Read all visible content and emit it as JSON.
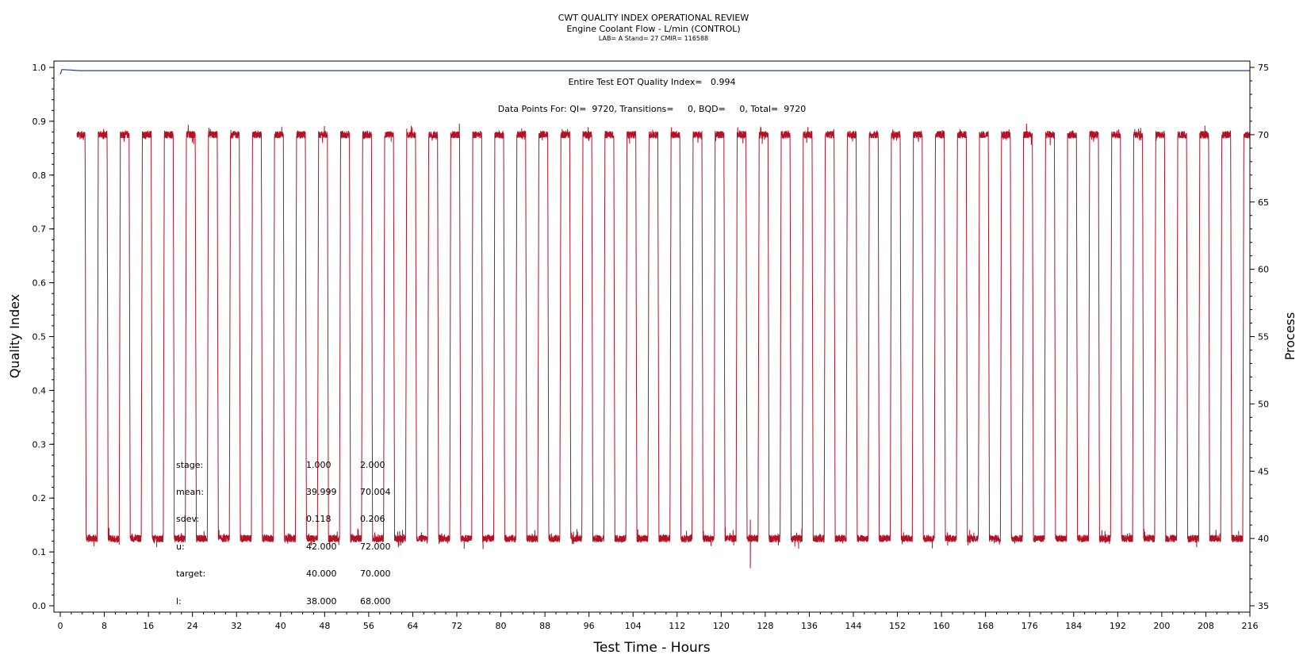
{
  "header": {
    "title": "CWT QUALITY INDEX OPERATIONAL REVIEW",
    "subtitle": "Engine Coolant Flow - L/min (CONTROL)",
    "sub2": "LAB= A Stand= 27 CMIR= 116588"
  },
  "annotations": {
    "qi_text": "Entire Test EOT Quality Index=   0.994",
    "datapoints_text": "Data Points For: QI=  9720, Transitions=     0, BQD=     0, Total=  9720"
  },
  "stats": {
    "rows": [
      {
        "label": "stage:",
        "v1": "1.000",
        "v2": "2.000"
      },
      {
        "label": "mean:",
        "v1": "39.999",
        "v2": "70.004"
      },
      {
        "label": "sdev:",
        "v1": "0.118",
        "v2": "0.206"
      },
      {
        "label": "u:",
        "v1": "42.000",
        "v2": "72.000"
      },
      {
        "label": "target:",
        "v1": "40.000",
        "v2": "70.000"
      },
      {
        "label": "l:",
        "v1": "38.000",
        "v2": "68.000"
      }
    ]
  },
  "chart_data": {
    "type": "line",
    "xlabel": "Test Time - Hours",
    "ylabel_left": "Quality Index",
    "ylabel_right": "Process",
    "xlim": [
      0,
      216
    ],
    "ylim_left": [
      0,
      1.0
    ],
    "ylim_right": [
      35,
      75
    ],
    "x_ticks": [
      "0",
      "8",
      "16",
      "24",
      "32",
      "40",
      "48",
      "56",
      "64",
      "72",
      "80",
      "88",
      "96",
      "104",
      "112",
      "120",
      "128",
      "136",
      "144",
      "152",
      "160",
      "168",
      "176",
      "184",
      "192",
      "200",
      "208",
      "216"
    ],
    "y_left_ticks": [
      "0.0",
      "0.1",
      "0.2",
      "0.3",
      "0.4",
      "0.5",
      "0.6",
      "0.7",
      "0.8",
      "0.9",
      "1.0"
    ],
    "y_right_ticks": [
      "35",
      "40",
      "45",
      "50",
      "55",
      "60",
      "65",
      "70",
      "75"
    ],
    "series": [
      {
        "axis": "right",
        "color": "#b11226",
        "low": 40.0,
        "high": 70.0,
        "first_rise_hour": 2.7,
        "period_hours": 4.0,
        "high_duration_hours": 1.8,
        "ramp_hours": 0.2,
        "spike": {
          "x": 125.3,
          "min": 37.8,
          "max": 41.4
        }
      },
      {
        "axis": "left",
        "color": "#2b3aa8",
        "points": [
          [
            0.0,
            0.987
          ],
          [
            0.3,
            0.996
          ],
          [
            2.0,
            0.995
          ],
          [
            3.5,
            0.994
          ],
          [
            216,
            0.994
          ]
        ]
      }
    ],
    "colors": {
      "process": "#b11226",
      "quality_index": "#2b3aa8"
    }
  }
}
